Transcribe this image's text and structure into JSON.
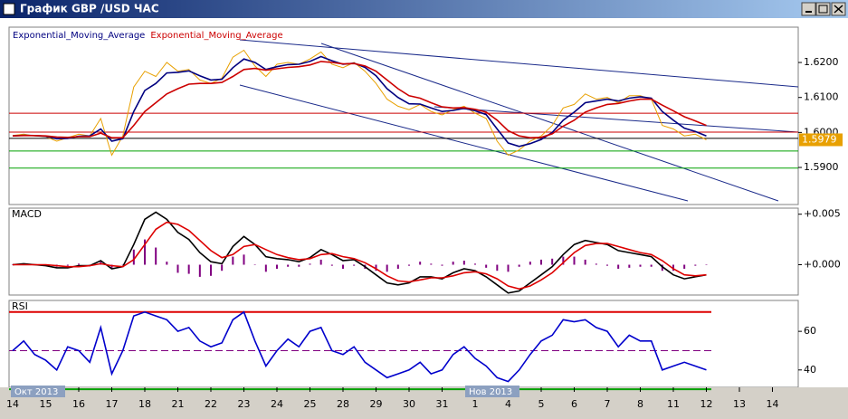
{
  "window": {
    "title": "График GBP /USD ЧАС"
  },
  "chart_data": [
    {
      "type": "line",
      "ylim": [
        1.5794,
        1.6301
      ],
      "yticks": [
        {
          "value": 1.59,
          "label": "1.5900"
        },
        {
          "value": 1.6,
          "label": "1.6000"
        },
        {
          "value": 1.61,
          "label": "1.6100"
        },
        {
          "value": 1.62,
          "label": "1.6200"
        }
      ],
      "last_price": 1.5979,
      "levels": [
        {
          "value": 1.6055,
          "color": "#cc0000"
        },
        {
          "value": 1.6001,
          "color": "#cc0000"
        },
        {
          "value": 1.5983,
          "color": "#000000"
        },
        {
          "value": 1.5947,
          "color": "#00a000"
        },
        {
          "value": 1.5898,
          "color": "#00a000"
        }
      ],
      "series": [
        {
          "color": "#e8a000",
          "values": [
            1.5991,
            1.5995,
            1.599,
            1.5988,
            1.5975,
            1.5985,
            1.5995,
            1.599,
            1.604,
            1.5935,
            1.599,
            1.613,
            1.6175,
            1.616,
            1.62,
            1.6175,
            1.618,
            1.615,
            1.614,
            1.6155,
            1.6215,
            1.6235,
            1.619,
            1.616,
            1.6195,
            1.62,
            1.6195,
            1.621,
            1.623,
            1.6195,
            1.6185,
            1.62,
            1.6175,
            1.614,
            1.6095,
            1.6075,
            1.6065,
            1.608,
            1.606,
            1.605,
            1.6065,
            1.6075,
            1.6055,
            1.604,
            1.5975,
            1.5935,
            1.595,
            1.5975,
            1.599,
            1.602,
            1.607,
            1.608,
            1.611,
            1.6095,
            1.61,
            1.6085,
            1.6105,
            1.6105,
            1.6095,
            1.602,
            1.601,
            1.599,
            1.5995,
            1.5979,
            null,
            null,
            null,
            null,
            null,
            null,
            null,
            null
          ]
        },
        {
          "name": "Exponential_Moving_Average",
          "color": "#000080",
          "values": [
            1.599,
            1.5992,
            1.5991,
            1.5989,
            1.5982,
            1.5983,
            1.5989,
            1.599,
            1.601,
            1.5975,
            1.5982,
            1.606,
            1.612,
            1.614,
            1.617,
            1.6172,
            1.6176,
            1.6162,
            1.615,
            1.6152,
            1.6185,
            1.621,
            1.62,
            1.618,
            1.6188,
            1.6194,
            1.6195,
            1.6203,
            1.6217,
            1.6205,
            1.6195,
            1.6198,
            1.6186,
            1.6162,
            1.6125,
            1.61,
            1.6082,
            1.6081,
            1.607,
            1.606,
            1.6063,
            1.6069,
            1.6062,
            1.6051,
            1.601,
            1.597,
            1.596,
            1.5968,
            1.598,
            1.6,
            1.6035,
            1.6058,
            1.6085,
            1.609,
            1.6095,
            1.609,
            1.6098,
            1.6102,
            1.6098,
            1.606,
            1.6035,
            1.6012,
            1.6003,
            1.599,
            null,
            null,
            null,
            null,
            null,
            null,
            null,
            null
          ]
        },
        {
          "name": "Exponential_Moving_Average",
          "color": "#cc0000",
          "values": [
            1.599,
            1.5991,
            1.5991,
            1.599,
            1.5987,
            1.5986,
            1.5988,
            1.5988,
            1.5998,
            1.5985,
            1.5985,
            1.602,
            1.606,
            1.6085,
            1.611,
            1.6125,
            1.6138,
            1.614,
            1.614,
            1.6143,
            1.616,
            1.618,
            1.6183,
            1.6178,
            1.6182,
            1.6186,
            1.6188,
            1.6193,
            1.6203,
            1.62,
            1.6196,
            1.6197,
            1.619,
            1.6175,
            1.615,
            1.6125,
            1.6105,
            1.6098,
            1.6085,
            1.6073,
            1.607,
            1.6071,
            1.6066,
            1.6058,
            1.6035,
            1.6005,
            1.599,
            1.5985,
            1.5986,
            1.5996,
            1.6018,
            1.6035,
            1.6058,
            1.607,
            1.608,
            1.6083,
            1.609,
            1.6095,
            1.6095,
            1.6078,
            1.6062,
            1.6045,
            1.6033,
            1.602,
            null,
            null,
            null,
            null,
            null,
            null,
            null,
            null
          ]
        }
      ]
    },
    {
      "type": "line",
      "title": "MACD",
      "ylim": [
        -0.003,
        0.0056
      ],
      "yticks": [
        {
          "value": 0,
          "label": "+0.000"
        },
        {
          "value": 0.005,
          "label": "+0.005"
        }
      ],
      "histogram": {
        "color": "#800080",
        "values": [
          0,
          0.0001,
          0,
          -0.0001,
          -0.0002,
          -0.0001,
          0.0001,
          0,
          0.0003,
          -0.0003,
          0,
          0.0015,
          0.0025,
          0.0017,
          0.0003,
          -0.0008,
          -0.0009,
          -0.0012,
          -0.0011,
          -0.0006,
          0.0008,
          0.001,
          0,
          -0.0007,
          -0.0004,
          -0.0002,
          -0.0002,
          0.0001,
          0.0005,
          -0.0001,
          -0.0004,
          -0.0001,
          -0.0004,
          -0.0006,
          -0.0007,
          -0.0004,
          -0.0001,
          0.0003,
          0.0001,
          -0.0001,
          0.0003,
          0.0004,
          0.0001,
          -0.0003,
          -0.0006,
          -0.0007,
          -0.0002,
          0.0003,
          0.0005,
          0.0006,
          0.0008,
          0.0008,
          0.0005,
          0.0001,
          -0.0001,
          -0.0004,
          -0.0003,
          -0.0002,
          -0.0002,
          -0.0006,
          -0.0006,
          -0.0004,
          -0.0001,
          0,
          null,
          null,
          null,
          null,
          null,
          null,
          null,
          null
        ]
      },
      "series": [
        {
          "color": "#000000",
          "values": [
            0,
            0.0001,
            0,
            -0.0001,
            -0.0003,
            -0.0003,
            -0.0001,
            -0.0001,
            0.0004,
            -0.0004,
            -0.0002,
            0.002,
            0.0045,
            0.0052,
            0.0045,
            0.0032,
            0.0025,
            0.0012,
            0.0003,
            0.0001,
            0.0018,
            0.0028,
            0.002,
            0.0008,
            0.0006,
            0.0005,
            0.0003,
            0.0007,
            0.0015,
            0.001,
            0.0004,
            0.0005,
            -0.0002,
            -0.001,
            -0.0018,
            -0.002,
            -0.0018,
            -0.0012,
            -0.0012,
            -0.0014,
            -0.0008,
            -0.0004,
            -0.0006,
            -0.0012,
            -0.002,
            -0.0028,
            -0.0026,
            -0.0018,
            -0.001,
            -0.0002,
            0.001,
            0.002,
            0.0024,
            0.0022,
            0.002,
            0.0014,
            0.0012,
            0.001,
            0.0008,
            -0.0002,
            -0.001,
            -0.0014,
            -0.0012,
            -0.001,
            null,
            null,
            null,
            null,
            null,
            null,
            null,
            null
          ]
        },
        {
          "color": "#dd0000",
          "values": [
            0,
            0,
            0,
            0,
            -0.0001,
            -0.0002,
            -0.0002,
            -0.0001,
            0.0001,
            -0.0001,
            -0.0002,
            0.0005,
            0.002,
            0.0035,
            0.0042,
            0.004,
            0.0034,
            0.0024,
            0.0014,
            0.0007,
            0.001,
            0.0018,
            0.002,
            0.0015,
            0.001,
            0.0007,
            0.0005,
            0.0006,
            0.001,
            0.0011,
            0.0008,
            0.0006,
            0.0002,
            -0.0004,
            -0.0011,
            -0.0016,
            -0.0017,
            -0.0015,
            -0.0013,
            -0.0013,
            -0.0011,
            -0.0008,
            -0.0007,
            -0.0009,
            -0.0014,
            -0.0021,
            -0.0024,
            -0.0021,
            -0.0015,
            -0.0008,
            0.0002,
            0.0012,
            0.0019,
            0.0021,
            0.0021,
            0.0018,
            0.0015,
            0.0012,
            0.001,
            0.0004,
            -0.0004,
            -0.001,
            -0.0011,
            -0.001,
            null,
            null,
            null,
            null,
            null,
            null,
            null,
            null
          ]
        }
      ]
    },
    {
      "type": "line",
      "title": "RSI",
      "ylim": [
        31,
        76
      ],
      "yticks": [
        40,
        60
      ],
      "levels": [
        {
          "value": 70,
          "color": "#dd0000"
        },
        {
          "value": 50,
          "color": "#800080",
          "dashed": true
        },
        {
          "value": 30,
          "color": "#00a000"
        }
      ],
      "categories": [
        "14",
        null,
        null,
        "15",
        null,
        null,
        "16",
        null,
        null,
        "17",
        null,
        null,
        "18",
        null,
        null,
        "21",
        null,
        null,
        "22",
        null,
        null,
        "23",
        null,
        null,
        "24",
        null,
        null,
        "25",
        null,
        null,
        "28",
        null,
        null,
        "29",
        null,
        null,
        "30",
        null,
        null,
        "31",
        null,
        null,
        "1",
        null,
        null,
        "4",
        null,
        null,
        "5",
        null,
        null,
        "6",
        null,
        null,
        "7",
        null,
        null,
        "8",
        null,
        null,
        "11",
        null,
        null,
        "12",
        null,
        null,
        "13",
        null,
        null,
        "14",
        null,
        null
      ],
      "period_labels": [
        "Окт 2013",
        "Нов 2013"
      ],
      "series": [
        {
          "color": "#0000cc",
          "values": [
            50,
            55,
            48,
            45,
            40,
            52,
            50,
            44,
            62,
            38,
            50,
            68,
            70,
            68,
            66,
            60,
            62,
            55,
            52,
            54,
            66,
            70,
            55,
            42,
            50,
            56,
            52,
            60,
            62,
            50,
            48,
            52,
            44,
            40,
            36,
            38,
            40,
            44,
            38,
            40,
            48,
            52,
            46,
            42,
            36,
            34,
            40,
            48,
            55,
            58,
            66,
            65,
            66,
            62,
            60,
            52,
            58,
            55,
            55,
            40,
            42,
            44,
            42,
            40,
            null,
            null,
            null,
            null,
            null,
            null,
            null,
            null
          ]
        }
      ]
    }
  ]
}
